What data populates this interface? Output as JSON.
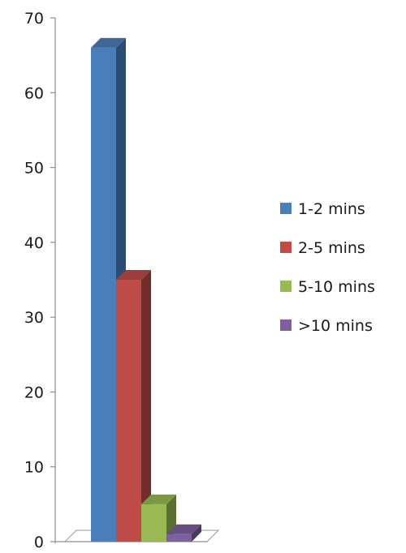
{
  "chart_data": {
    "type": "bar",
    "title": "",
    "xlabel": "",
    "ylabel": "",
    "ylim": [
      0,
      70
    ],
    "yticks": [
      0,
      10,
      20,
      30,
      40,
      50,
      60,
      70
    ],
    "grid": false,
    "three_d": true,
    "legend_position": "right",
    "series": [
      {
        "name": "1-2 mins",
        "value": 66,
        "color": "#4a7ebb"
      },
      {
        "name": "2-5 mins",
        "value": 35,
        "color": "#be4b48"
      },
      {
        "name": "5-10 mins",
        "value": 5,
        "color": "#98b954"
      },
      {
        "name": ">10 mins",
        "value": 1,
        "color": "#7d60a0"
      }
    ]
  }
}
